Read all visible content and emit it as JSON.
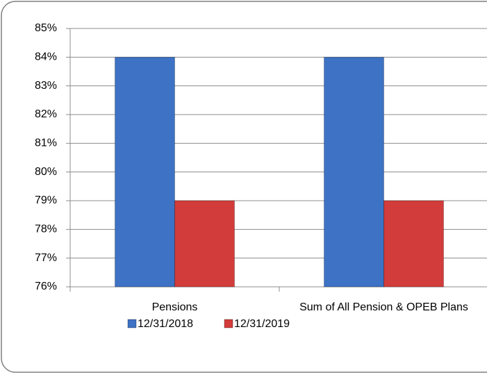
{
  "chart_data": {
    "type": "bar",
    "categories": [
      "Pensions",
      "Sum of All Pension & OPEB Plans"
    ],
    "series": [
      {
        "name": "12/31/2018",
        "color": "#3d72c4",
        "values": [
          84,
          84
        ]
      },
      {
        "name": "12/31/2019",
        "color": "#d23c3a",
        "values": [
          79,
          79
        ]
      }
    ],
    "ylim": [
      76,
      85
    ],
    "yticks": [
      {
        "value": 76,
        "label": "76%"
      },
      {
        "value": 77,
        "label": "77%"
      },
      {
        "value": 78,
        "label": "78%"
      },
      {
        "value": 79,
        "label": "79%"
      },
      {
        "value": 80,
        "label": "80%"
      },
      {
        "value": 81,
        "label": "81%"
      },
      {
        "value": 82,
        "label": "82%"
      },
      {
        "value": 83,
        "label": "83%"
      },
      {
        "value": 84,
        "label": "84%"
      },
      {
        "value": 85,
        "label": "85%"
      }
    ],
    "grid": true,
    "legend": "bottom"
  }
}
